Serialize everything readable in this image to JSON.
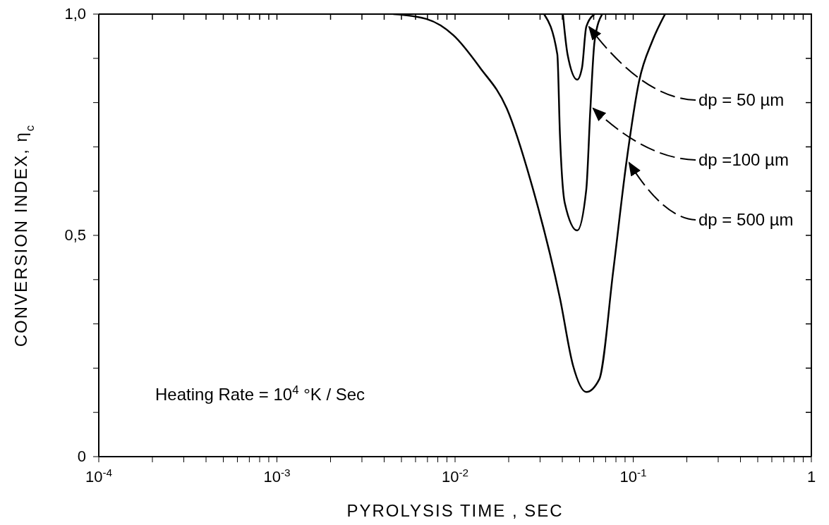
{
  "chart_data": {
    "type": "line",
    "xlabel": "PYROLYSIS  TIME , SEC",
    "ylabel": "CONVERSION  INDEX, η$_{c}$",
    "log": "x",
    "marker": "none",
    "line_style": "solid",
    "xlim": [
      0.0001,
      1
    ],
    "ylim": [
      0,
      1
    ],
    "xticks": [
      {
        "value": 0.0001,
        "label": "10$^{-4}$"
      },
      {
        "value": 0.0002,
        "label": null
      },
      {
        "value": 0.0003,
        "label": null
      },
      {
        "value": 0.0004,
        "label": null
      },
      {
        "value": 0.0005,
        "label": null
      },
      {
        "value": 0.0006,
        "label": null
      },
      {
        "value": 0.0007,
        "label": null
      },
      {
        "value": 0.0008,
        "label": null
      },
      {
        "value": 0.0009,
        "label": null
      },
      {
        "value": 0.001,
        "label": "10$^{-3}$"
      },
      {
        "value": 0.002,
        "label": null
      },
      {
        "value": 0.003,
        "label": null
      },
      {
        "value": 0.004,
        "label": null
      },
      {
        "value": 0.005,
        "label": null
      },
      {
        "value": 0.006,
        "label": null
      },
      {
        "value": 0.007,
        "label": null
      },
      {
        "value": 0.008,
        "label": null
      },
      {
        "value": 0.009,
        "label": null
      },
      {
        "value": 0.01,
        "label": "10$^{-2}$"
      },
      {
        "value": 0.02,
        "label": null
      },
      {
        "value": 0.03,
        "label": null
      },
      {
        "value": 0.04,
        "label": null
      },
      {
        "value": 0.05,
        "label": null
      },
      {
        "value": 0.06,
        "label": null
      },
      {
        "value": 0.07,
        "label": null
      },
      {
        "value": 0.08,
        "label": null
      },
      {
        "value": 0.09,
        "label": null
      },
      {
        "value": 0.1,
        "label": "10$^{-1}$"
      },
      {
        "value": 0.2,
        "label": null
      },
      {
        "value": 0.3,
        "label": null
      },
      {
        "value": 0.4,
        "label": null
      },
      {
        "value": 0.5,
        "label": null
      },
      {
        "value": 0.6,
        "label": null
      },
      {
        "value": 0.7,
        "label": null
      },
      {
        "value": 0.8,
        "label": null
      },
      {
        "value": 0.9,
        "label": null
      },
      {
        "value": 1,
        "label": "1"
      }
    ],
    "yticks": [
      {
        "value": 0,
        "label": "0"
      },
      {
        "value": 0.1,
        "label": null
      },
      {
        "value": 0.2,
        "label": null
      },
      {
        "value": 0.3,
        "label": null
      },
      {
        "value": 0.4,
        "label": null
      },
      {
        "value": 0.5,
        "label": "0,5"
      },
      {
        "value": 0.6,
        "label": null
      },
      {
        "value": 0.7,
        "label": null
      },
      {
        "value": 0.8,
        "label": null
      },
      {
        "value": 0.9,
        "label": null
      },
      {
        "value": 1,
        "label": "1,0"
      }
    ],
    "annotations": [
      "Heating Rate = 10$^{4}$ °K / Sec"
    ],
    "series": [
      {
        "name": "dp = 50 µm",
        "color": "#000000",
        "x": [
          0.0403,
          0.0428,
          0.0485,
          0.0516,
          0.0545,
          0.0607
        ],
        "values": [
          1,
          0.909,
          0.852,
          0.879,
          0.971,
          1
        ]
      },
      {
        "name": "dp =100 µm",
        "color": "#000000",
        "x": [
          0.0316,
          0.0375,
          0.0388,
          0.0413,
          0.0485,
          0.0545,
          0.0575,
          0.0607,
          0.067
        ],
        "values": [
          1,
          0.909,
          0.726,
          0.573,
          0.511,
          0.603,
          0.787,
          0.939,
          1
        ]
      },
      {
        "name": "dp = 500 µm",
        "color": "#000000",
        "x": [
          0.0045,
          0.0069,
          0.0098,
          0.0138,
          0.0195,
          0.0274,
          0.0388,
          0.046,
          0.0545,
          0.0645,
          0.0772,
          0.0915,
          0.108,
          0.128,
          0.151
        ],
        "values": [
          1,
          0.989,
          0.952,
          0.879,
          0.787,
          0.604,
          0.358,
          0.205,
          0.146,
          0.175,
          0.419,
          0.664,
          0.849,
          0.939,
          1
        ]
      }
    ]
  }
}
